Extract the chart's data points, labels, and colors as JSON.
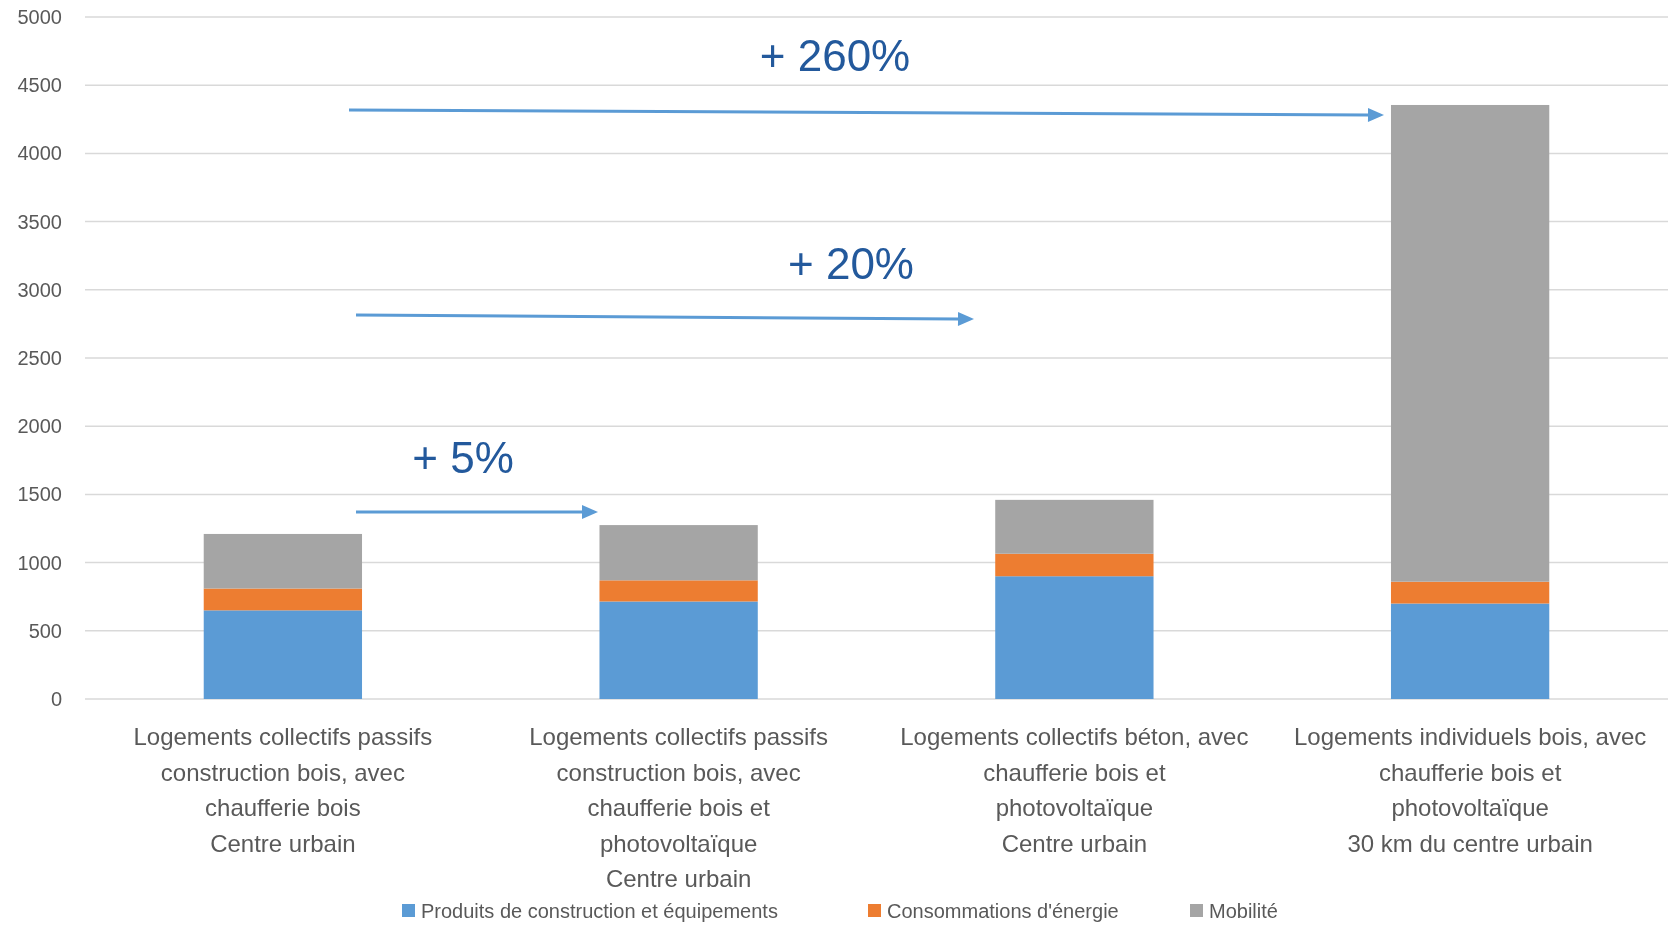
{
  "chart_data": {
    "type": "bar",
    "stacked": true,
    "categories": [
      "Logements collectifs passifs\nconstruction bois, avec\nchaufferie bois\nCentre urbain",
      "Logements collectifs passifs\nconstruction bois, avec\nchaufferie bois et\nphotovoltaïque\nCentre urbain",
      "Logements collectifs béton, avec\nchaufferie bois et\nphotovoltaïque\nCentre urbain",
      "Logements individuels bois, avec\nchaufferie bois et\nphotovoltaïque\n30 km du centre urbain"
    ],
    "series": [
      {
        "name": "Produits de construction et équipements",
        "color": "#5b9bd5",
        "values": [
          650,
          715,
          900,
          700
        ]
      },
      {
        "name": "Consommations d'énergie",
        "color": "#ed7d31",
        "values": [
          160,
          155,
          165,
          160
        ]
      },
      {
        "name": "Mobilité",
        "color": "#a5a5a5",
        "values": [
          400,
          405,
          395,
          3495
        ]
      }
    ],
    "ylim": [
      0,
      5000
    ],
    "yticks": [
      0,
      500,
      1000,
      1500,
      2000,
      2500,
      3000,
      3500,
      4000,
      4500,
      5000
    ],
    "grid": "y",
    "legend": "bottom",
    "annotations": [
      "+ 5%",
      "+ 20%",
      "+ 260%"
    ]
  }
}
